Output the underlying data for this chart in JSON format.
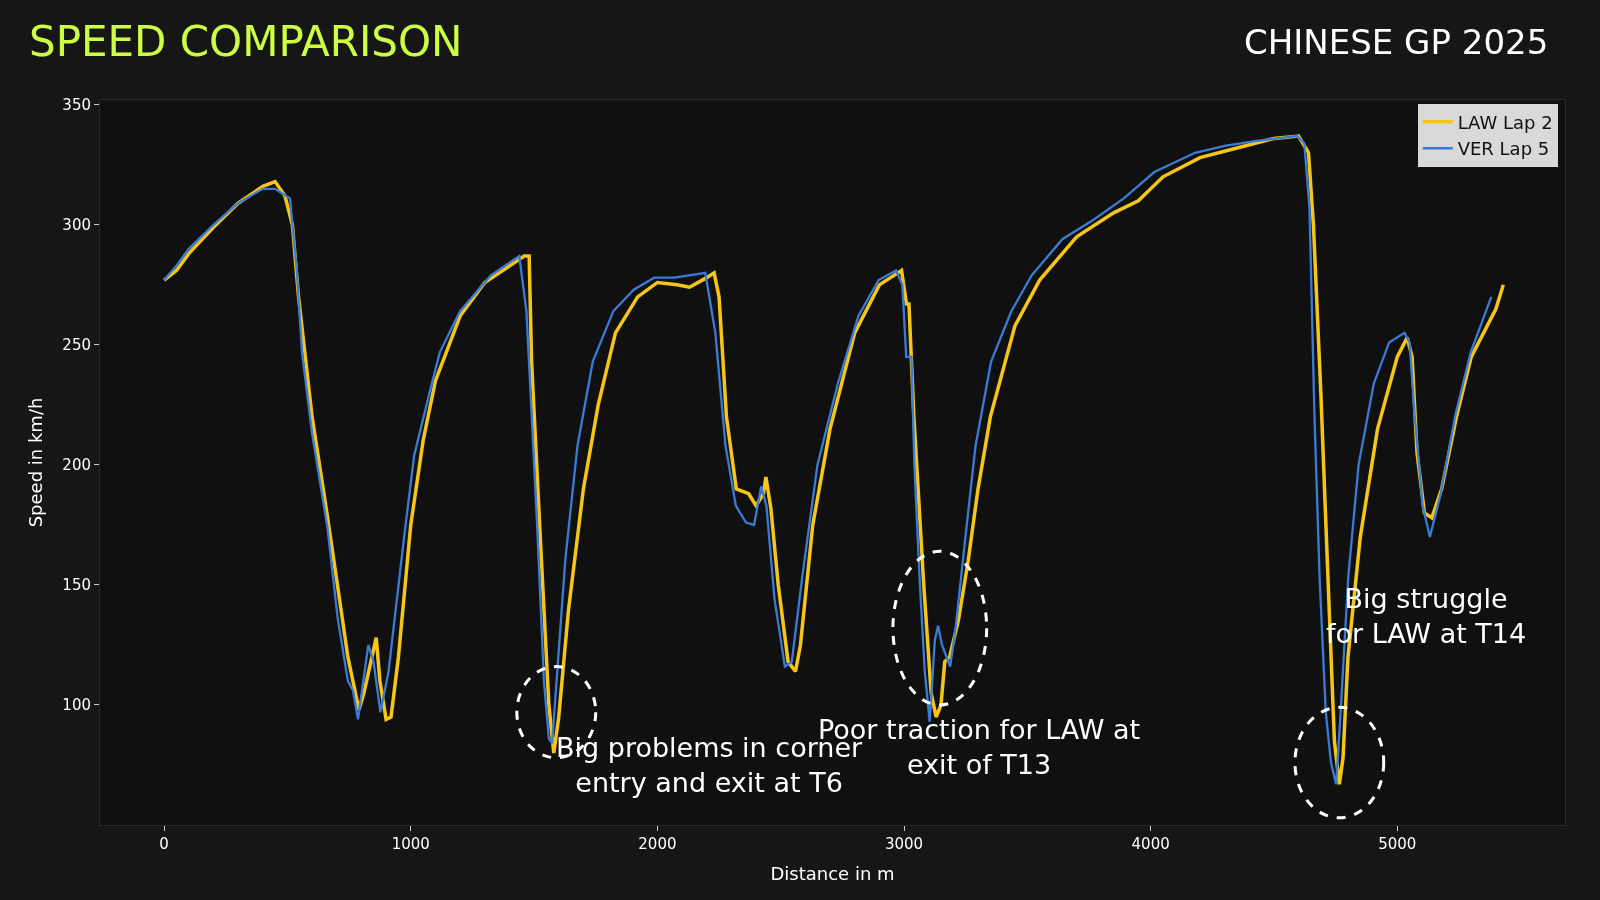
{
  "chart_data": {
    "type": "line",
    "title": "SPEED COMPARISON",
    "subtitle": "CHINESE GP 2025",
    "xlabel": "Distance in m",
    "ylabel": "Speed in km/h",
    "xlim": [
      -260,
      5680
    ],
    "ylim": [
      50,
      352
    ],
    "xticks": [
      0,
      1000,
      2000,
      3000,
      4000,
      5000
    ],
    "yticks": [
      100,
      150,
      200,
      250,
      300,
      350
    ],
    "grid": false,
    "legend": "top right",
    "line_style": "solid",
    "marker": "none",
    "series": [
      {
        "name": "LAW Lap 2",
        "color": "#f5c518",
        "x": [
          0,
          50,
          100,
          200,
          300,
          400,
          450,
          490,
          520,
          545,
          600,
          660,
          700,
          745,
          790,
          810,
          860,
          875,
          900,
          920,
          950,
          1000,
          1050,
          1100,
          1200,
          1300,
          1460,
          1480,
          1490,
          1530,
          1560,
          1580,
          1600,
          1640,
          1700,
          1760,
          1830,
          1920,
          2000,
          2080,
          2130,
          2200,
          2230,
          2250,
          2280,
          2320,
          2370,
          2400,
          2430,
          2440,
          2460,
          2490,
          2530,
          2560,
          2580,
          2630,
          2700,
          2800,
          2900,
          2990,
          3010,
          3020,
          3040,
          3080,
          3110,
          3130,
          3150,
          3165,
          3185,
          3220,
          3260,
          3300,
          3350,
          3450,
          3550,
          3700,
          3850,
          3950,
          4050,
          4200,
          4350,
          4500,
          4600,
          4640,
          4660,
          4690,
          4720,
          4745,
          4765,
          4780,
          4800,
          4850,
          4920,
          5000,
          5040,
          5060,
          5080,
          5110,
          5140,
          5180,
          5240,
          5300,
          5400,
          5430
        ],
        "values": [
          277,
          281,
          288,
          299,
          309,
          316,
          318,
          312,
          300,
          270,
          220,
          180,
          152,
          120,
          98,
          105,
          128,
          110,
          94,
          95,
          120,
          175,
          210,
          235,
          262,
          276,
          287,
          287,
          243,
          160,
          100,
          80,
          95,
          140,
          190,
          225,
          255,
          270,
          276,
          275,
          274,
          278,
          280,
          270,
          220,
          190,
          188,
          183,
          188,
          195,
          182,
          150,
          118,
          114,
          125,
          175,
          215,
          255,
          275,
          281,
          267,
          267,
          220,
          150,
          105,
          95,
          100,
          118,
          120,
          135,
          160,
          190,
          220,
          258,
          277,
          295,
          305,
          310,
          320,
          328,
          332,
          336,
          337,
          330,
          300,
          230,
          150,
          85,
          67,
          78,
          120,
          170,
          215,
          245,
          253,
          245,
          205,
          180,
          178,
          190,
          220,
          245,
          265,
          275
        ]
      },
      {
        "name": "VER Lap 5",
        "color": "#3a7bd5",
        "x": [
          0,
          50,
          100,
          200,
          300,
          400,
          450,
          480,
          510,
          538,
          559,
          600,
          662,
          704,
          745,
          766,
          786,
          828,
          849,
          877,
          910,
          973,
          1014,
          1076,
          1118,
          1200,
          1325,
          1440,
          1469,
          1511,
          1540,
          1560,
          1573,
          1594,
          1627,
          1676,
          1738,
          1821,
          1904,
          1987,
          2070,
          2194,
          2235,
          2276,
          2318,
          2359,
          2392,
          2421,
          2442,
          2475,
          2517,
          2545,
          2587,
          2649,
          2732,
          2815,
          2897,
          2968,
          2993,
          3009,
          3030,
          3042,
          3063,
          3084,
          3104,
          3125,
          3138,
          3154,
          3187,
          3208,
          3249,
          3290,
          3353,
          3435,
          3518,
          3642,
          3767,
          3891,
          4015,
          4180,
          4305,
          4429,
          4594,
          4623,
          4644,
          4664,
          4685,
          4710,
          4731,
          4752,
          4768,
          4801,
          4843,
          4905,
          4967,
          5029,
          5050,
          5070,
          5103,
          5132,
          5174,
          5236,
          5298,
          5381
        ],
        "values": [
          277,
          283,
          290,
          300,
          309,
          315,
          315,
          313,
          311,
          281,
          247,
          213,
          174,
          136,
          110,
          106,
          94,
          125,
          118,
          97,
          114,
          170,
          204,
          230,
          247,
          264,
          279,
          287,
          264,
          178,
          110,
          86,
          84,
          114,
          161,
          208,
          243,
          264,
          273,
          278,
          278,
          280,
          255,
          208,
          183,
          176,
          175,
          191,
          183,
          144,
          116,
          118,
          153,
          200,
          234,
          262,
          277,
          281,
          275,
          245,
          245,
          200,
          153,
          114,
          93,
          127,
          133,
          125,
          116,
          131,
          170,
          208,
          243,
          264,
          279,
          294,
          302,
          311,
          322,
          330,
          333,
          335,
          337,
          334,
          307,
          221,
          153,
          97,
          76,
          67,
          93,
          153,
          200,
          234,
          251,
          255,
          251,
          221,
          183,
          170,
          187,
          221,
          247,
          270
        ]
      }
    ],
    "annotations": [
      "Big problems in corner entry and exit at T6",
      "Poor traction for LAW at exit of T13",
      "Big struggle for LAW at T14"
    ]
  }
}
